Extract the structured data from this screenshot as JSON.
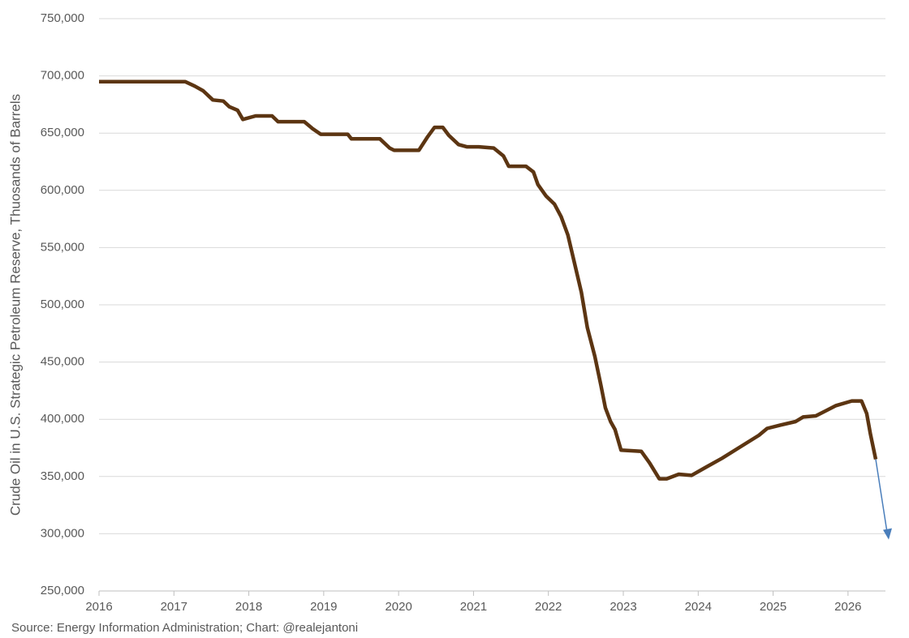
{
  "chart_data": {
    "type": "line",
    "y_label": "Crude Oil in U.S. Strategic Petroleum Reserve, Thuosands of Barrels",
    "source": "Source: Energy Information Administration; Chart: @realejantoni",
    "x": [
      2016,
      2017.15,
      2017.28,
      2017.39,
      2017.52,
      2017.66,
      2017.74,
      2017.85,
      2017.92,
      2018.09,
      2018.31,
      2018.39,
      2018.74,
      2018.85,
      2018.96,
      2019.32,
      2019.37,
      2019.75,
      2019.88,
      2019.94,
      2020.27,
      2020.39,
      2020.48,
      2020.59,
      2020.67,
      2020.8,
      2020.91,
      2021.07,
      2021.27,
      2021.4,
      2021.47,
      2021.7,
      2021.8,
      2021.86,
      2021.97,
      2022.08,
      2022.17,
      2022.26,
      2022.35,
      2022.44,
      2022.52,
      2022.62,
      2022.7,
      2022.76,
      2022.83,
      2022.89,
      2022.97,
      2023.24,
      2023.35,
      2023.48,
      2023.58,
      2023.74,
      2023.91,
      2024.1,
      2024.32,
      2024.54,
      2024.81,
      2024.92,
      2025.1,
      2025.3,
      2025.4,
      2025.57,
      2025.84,
      2026.05,
      2026.18,
      2026.25,
      2026.3,
      2026.37
    ],
    "values": [
      695000,
      695000,
      691000,
      687000,
      679000,
      678000,
      673000,
      670000,
      662000,
      665000,
      665000,
      660000,
      660000,
      654000,
      649000,
      649000,
      645000,
      645000,
      637000,
      635000,
      635000,
      647000,
      655000,
      655000,
      648000,
      640000,
      638000,
      638000,
      637000,
      630000,
      621000,
      621000,
      616000,
      605000,
      595000,
      588000,
      577000,
      561000,
      536000,
      511000,
      480000,
      455000,
      430000,
      410000,
      398000,
      391000,
      373000,
      372000,
      362000,
      348000,
      348000,
      352000,
      351000,
      358000,
      366000,
      375000,
      386000,
      392000,
      395000,
      398000,
      402000,
      403000,
      412000,
      416000,
      416000,
      405000,
      387000,
      365000
    ],
    "color": "#5c3512",
    "xlim": [
      2016,
      2026.5
    ],
    "xticks": [
      2016,
      2017,
      2018,
      2019,
      2020,
      2021,
      2022,
      2023,
      2024,
      2025,
      2026
    ],
    "ylim": [
      250000,
      750000
    ],
    "yticks": [
      {
        "value": 250000,
        "label": "250,000"
      },
      {
        "value": 300000,
        "label": "300,000"
      },
      {
        "value": 350000,
        "label": "350,000"
      },
      {
        "value": 400000,
        "label": "400,000"
      },
      {
        "value": 450000,
        "label": "450,000"
      },
      {
        "value": 500000,
        "label": "500,000"
      },
      {
        "value": 550000,
        "label": "550,000"
      },
      {
        "value": 600000,
        "label": "600,000"
      },
      {
        "value": 650000,
        "label": "650,000"
      },
      {
        "value": 700000,
        "label": "700,000"
      },
      {
        "value": 750000,
        "label": "750,000"
      }
    ],
    "grid": true
  }
}
